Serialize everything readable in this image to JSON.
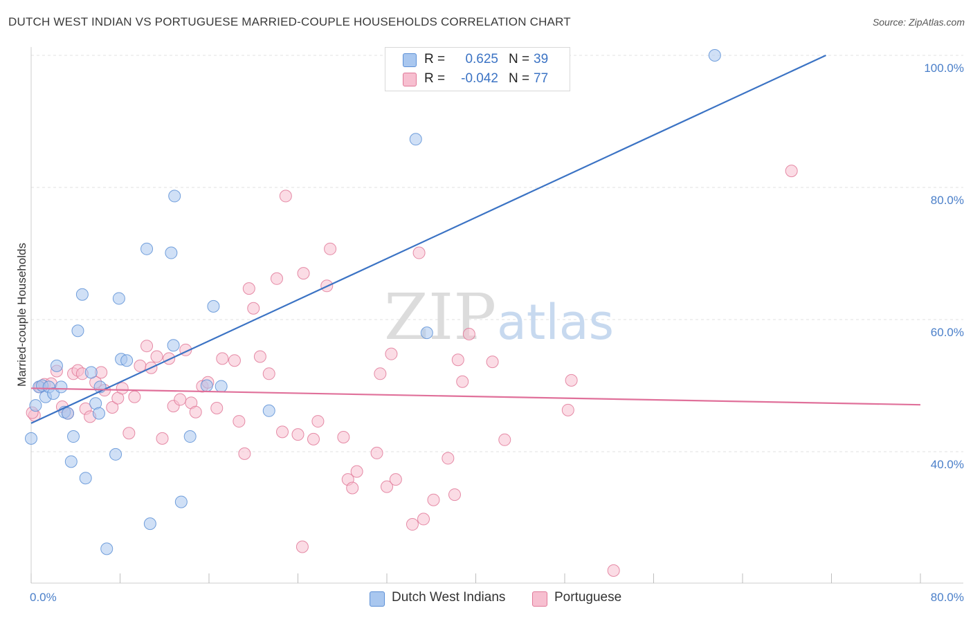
{
  "title": "DUTCH WEST INDIAN VS PORTUGUESE MARRIED-COUPLE HOUSEHOLDS CORRELATION CHART",
  "source": "Source: ZipAtlas.com",
  "watermark": {
    "zip": "ZIP",
    "atlas": "atlas"
  },
  "legend": {
    "rows": [
      {
        "r_label": "R =",
        "r_value": "0.625",
        "n_label": "N =",
        "n_value": "39",
        "color": "#a9c7ef",
        "border": "#5b8fd6"
      },
      {
        "r_label": "R =",
        "r_value": "-0.042",
        "n_label": "N =",
        "n_value": "77",
        "color": "#f7bfd0",
        "border": "#e07898"
      }
    ]
  },
  "bottom_legend": {
    "items": [
      {
        "label": "Dutch West Indians",
        "color": "#a9c7ef",
        "border": "#5b8fd6"
      },
      {
        "label": "Portuguese",
        "color": "#f7bfd0",
        "border": "#e07898"
      }
    ]
  },
  "chart_data": {
    "type": "scatter",
    "title": "DUTCH WEST INDIAN VS PORTUGUESE MARRIED-COUPLE HOUSEHOLDS CORRELATION CHART",
    "xlabel": "",
    "ylabel": "Married-couple Households",
    "xlim": [
      0,
      80
    ],
    "ylim": [
      20,
      102
    ],
    "x_tick_labels": [
      "0.0%",
      "80.0%"
    ],
    "y_ticks": [
      40,
      60,
      80,
      100
    ],
    "y_tick_labels": [
      "40.0%",
      "60.0%",
      "80.0%",
      "100.0%"
    ],
    "grid": true,
    "legend_position": "top-center",
    "series": [
      {
        "name": "Dutch West Indians",
        "color": "#5b8fd6",
        "fill": "#a9c7ef",
        "r": 0.625,
        "n": 39,
        "trend": {
          "x": [
            0,
            71.5
          ],
          "y": [
            44.3,
            100.0
          ],
          "color": "#3b73c4"
        },
        "points": [
          [
            0.0,
            42.0
          ],
          [
            0.4,
            47.0
          ],
          [
            0.7,
            49.8
          ],
          [
            1.0,
            50.0
          ],
          [
            1.3,
            48.3
          ],
          [
            1.6,
            49.8
          ],
          [
            2.0,
            48.8
          ],
          [
            2.3,
            53.0
          ],
          [
            2.7,
            49.8
          ],
          [
            3.0,
            46.0
          ],
          [
            3.3,
            45.8
          ],
          [
            3.6,
            38.5
          ],
          [
            3.8,
            42.3
          ],
          [
            4.2,
            58.3
          ],
          [
            4.6,
            63.8
          ],
          [
            4.9,
            36.0
          ],
          [
            5.4,
            52.0
          ],
          [
            5.8,
            47.3
          ],
          [
            6.1,
            45.8
          ],
          [
            6.2,
            49.8
          ],
          [
            6.8,
            25.3
          ],
          [
            7.6,
            39.6
          ],
          [
            7.9,
            63.2
          ],
          [
            8.1,
            54.0
          ],
          [
            8.6,
            53.8
          ],
          [
            10.4,
            70.7
          ],
          [
            10.7,
            29.1
          ],
          [
            12.6,
            70.1
          ],
          [
            12.8,
            56.1
          ],
          [
            12.9,
            78.7
          ],
          [
            13.5,
            32.4
          ],
          [
            14.3,
            42.3
          ],
          [
            15.8,
            50.0
          ],
          [
            16.4,
            62.0
          ],
          [
            17.1,
            49.9
          ],
          [
            21.4,
            46.2
          ],
          [
            34.6,
            87.3
          ],
          [
            35.6,
            58.0
          ],
          [
            61.5,
            100.0
          ]
        ]
      },
      {
        "name": "Portuguese",
        "color": "#e07898",
        "fill": "#f7bfd0",
        "r": -0.042,
        "n": 77,
        "trend": {
          "x": [
            0,
            80
          ],
          "y": [
            49.6,
            47.1
          ],
          "color": "#e0709a"
        },
        "points": [
          [
            0.3,
            45.5
          ],
          [
            0.8,
            49.8
          ],
          [
            1.2,
            50.2
          ],
          [
            1.8,
            50.3
          ],
          [
            2.3,
            52.2
          ],
          [
            2.8,
            46.8
          ],
          [
            3.3,
            45.8
          ],
          [
            3.8,
            51.8
          ],
          [
            4.2,
            52.3
          ],
          [
            4.6,
            51.8
          ],
          [
            4.9,
            46.5
          ],
          [
            5.3,
            45.3
          ],
          [
            5.8,
            50.5
          ],
          [
            6.3,
            52.0
          ],
          [
            6.6,
            49.3
          ],
          [
            7.3,
            46.7
          ],
          [
            7.8,
            48.1
          ],
          [
            8.2,
            49.6
          ],
          [
            8.8,
            42.8
          ],
          [
            9.3,
            48.3
          ],
          [
            9.8,
            53.0
          ],
          [
            10.4,
            56.0
          ],
          [
            10.8,
            52.7
          ],
          [
            11.3,
            54.4
          ],
          [
            11.8,
            42.0
          ],
          [
            12.4,
            54.1
          ],
          [
            12.8,
            46.9
          ],
          [
            13.4,
            47.9
          ],
          [
            13.9,
            55.4
          ],
          [
            14.4,
            47.4
          ],
          [
            14.8,
            46.0
          ],
          [
            15.4,
            49.9
          ],
          [
            15.9,
            50.5
          ],
          [
            16.7,
            46.6
          ],
          [
            17.2,
            54.1
          ],
          [
            18.3,
            53.8
          ],
          [
            18.7,
            44.6
          ],
          [
            19.2,
            39.7
          ],
          [
            19.6,
            64.7
          ],
          [
            20.0,
            61.7
          ],
          [
            20.6,
            54.4
          ],
          [
            21.4,
            51.8
          ],
          [
            22.1,
            66.2
          ],
          [
            22.6,
            43.0
          ],
          [
            22.9,
            78.7
          ],
          [
            24.0,
            42.6
          ],
          [
            24.5,
            67.0
          ],
          [
            25.4,
            41.9
          ],
          [
            25.8,
            44.6
          ],
          [
            26.6,
            65.1
          ],
          [
            26.9,
            70.7
          ],
          [
            28.1,
            42.2
          ],
          [
            28.5,
            35.8
          ],
          [
            28.9,
            34.5
          ],
          [
            29.3,
            37.0
          ],
          [
            31.1,
            39.8
          ],
          [
            31.4,
            51.8
          ],
          [
            32.0,
            34.7
          ],
          [
            32.4,
            54.8
          ],
          [
            32.8,
            35.8
          ],
          [
            34.3,
            29.0
          ],
          [
            34.9,
            70.1
          ],
          [
            35.3,
            29.8
          ],
          [
            36.2,
            32.7
          ],
          [
            37.5,
            39.0
          ],
          [
            38.1,
            33.5
          ],
          [
            38.4,
            53.9
          ],
          [
            38.8,
            50.6
          ],
          [
            39.4,
            57.8
          ],
          [
            41.5,
            53.6
          ],
          [
            42.6,
            41.8
          ],
          [
            48.3,
            46.3
          ],
          [
            48.6,
            50.8
          ],
          [
            52.4,
            22.0
          ],
          [
            68.4,
            82.5
          ],
          [
            24.4,
            25.6
          ],
          [
            0.1,
            45.9
          ]
        ]
      }
    ]
  }
}
